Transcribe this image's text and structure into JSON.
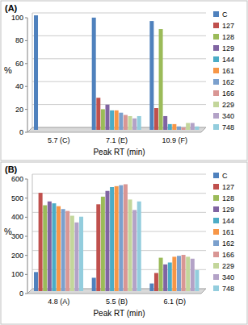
{
  "chart_data": [
    {
      "type": "bar",
      "title": "(A)",
      "x_label": "Peak RT (min)",
      "y_label": "%",
      "categories": [
        "5.7 (C)",
        "7.1 (E)",
        "10.9 (F)"
      ],
      "ylim": [
        0,
        100
      ],
      "yticks": [
        0,
        20,
        40,
        60,
        80,
        100
      ],
      "grid": true,
      "legend": "right",
      "series": [
        {
          "name": "C",
          "color": "#4f81bd",
          "values": [
            100,
            98,
            95
          ]
        },
        {
          "name": "127",
          "color": "#c0504d",
          "values": [
            0,
            28,
            19
          ]
        },
        {
          "name": "128",
          "color": "#9bbb59",
          "values": [
            0,
            18,
            88
          ]
        },
        {
          "name": "129",
          "color": "#8064a2",
          "values": [
            0,
            22,
            12
          ]
        },
        {
          "name": "144",
          "color": "#4bacc6",
          "values": [
            0,
            17,
            5
          ]
        },
        {
          "name": "161",
          "color": "#f79646",
          "values": [
            0,
            17,
            5
          ]
        },
        {
          "name": "162",
          "color": "#7ba0cd",
          "values": [
            0,
            15,
            3
          ]
        },
        {
          "name": "166",
          "color": "#d99694",
          "values": [
            0,
            13,
            2
          ]
        },
        {
          "name": "229",
          "color": "#c3d69b",
          "values": [
            0,
            12,
            6
          ]
        },
        {
          "name": "340",
          "color": "#b3a2c7",
          "values": [
            0,
            10,
            6
          ]
        },
        {
          "name": "748",
          "color": "#93cddd",
          "values": [
            0,
            12,
            3
          ]
        }
      ]
    },
    {
      "type": "bar",
      "title": "(B)",
      "x_label": "Peak RT (min)",
      "y_label": "%",
      "categories": [
        "4.8 (A)",
        "5.5 (B)",
        "6.1 (D)"
      ],
      "ylim": [
        0,
        600
      ],
      "yticks": [
        0,
        100,
        200,
        300,
        400,
        500,
        600
      ],
      "grid": true,
      "legend": "right",
      "series": [
        {
          "name": "C",
          "color": "#4f81bd",
          "values": [
            100,
            70,
            40
          ]
        },
        {
          "name": "127",
          "color": "#c0504d",
          "values": [
            515,
            455,
            95
          ]
        },
        {
          "name": "128",
          "color": "#9bbb59",
          "values": [
            450,
            495,
            175
          ]
        },
        {
          "name": "129",
          "color": "#8064a2",
          "values": [
            470,
            525,
            140
          ]
        },
        {
          "name": "144",
          "color": "#4bacc6",
          "values": [
            460,
            545,
            150
          ]
        },
        {
          "name": "161",
          "color": "#f79646",
          "values": [
            445,
            550,
            180
          ]
        },
        {
          "name": "162",
          "color": "#7ba0cd",
          "values": [
            430,
            555,
            185
          ]
        },
        {
          "name": "166",
          "color": "#d99694",
          "values": [
            420,
            560,
            190
          ]
        },
        {
          "name": "229",
          "color": "#c3d69b",
          "values": [
            395,
            480,
            180
          ]
        },
        {
          "name": "340",
          "color": "#b3a2c7",
          "values": [
            360,
            425,
            170
          ]
        },
        {
          "name": "748",
          "color": "#93cddd",
          "values": [
            390,
            470,
            110
          ]
        }
      ]
    }
  ]
}
